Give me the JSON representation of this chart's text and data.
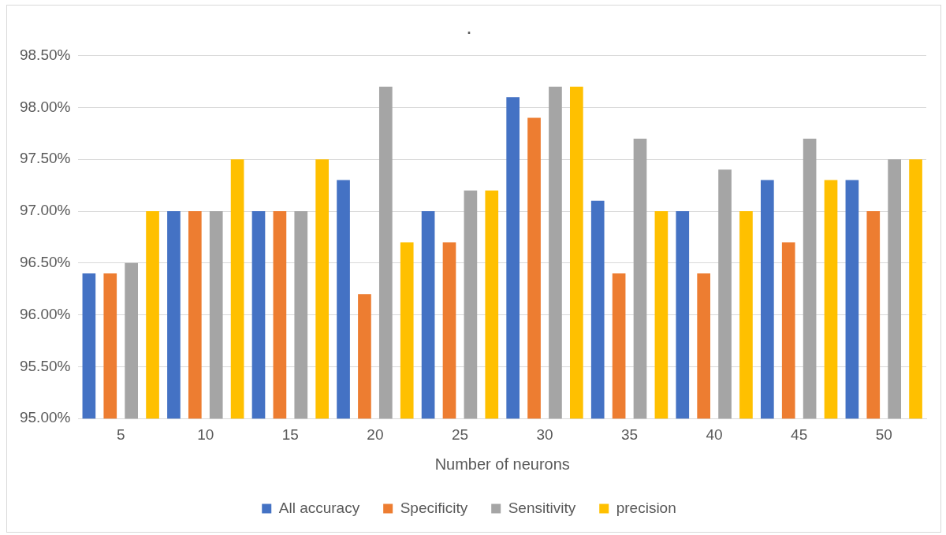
{
  "chart_data": {
    "type": "bar",
    "title": ".",
    "xlabel": "Number of neurons",
    "categories": [
      "5",
      "10",
      "15",
      "20",
      "25",
      "30",
      "35",
      "40",
      "45",
      "50"
    ],
    "series": [
      {
        "name": "All accuracy",
        "color": "#4472c4",
        "values": [
          96.4,
          97.0,
          97.0,
          97.3,
          97.0,
          98.1,
          97.1,
          97.0,
          97.3,
          97.3
        ]
      },
      {
        "name": "Specificity",
        "color": "#ed7d31",
        "values": [
          96.4,
          97.0,
          97.0,
          96.2,
          96.7,
          97.9,
          96.4,
          96.4,
          96.7,
          97.0
        ]
      },
      {
        "name": "Sensitivity",
        "color": "#a5a5a5",
        "values": [
          96.5,
          97.0,
          97.0,
          98.2,
          97.2,
          98.2,
          97.7,
          97.4,
          97.7,
          97.5
        ]
      },
      {
        "name": "precision",
        "color": "#ffc000",
        "values": [
          97.0,
          97.5,
          97.5,
          96.7,
          97.2,
          98.2,
          97.0,
          97.0,
          97.3,
          97.5
        ]
      }
    ],
    "ylim": [
      95,
      98.5
    ],
    "yticks": [
      {
        "value": 95,
        "label": "95.00%"
      },
      {
        "value": 95.5,
        "label": "95.50%"
      },
      {
        "value": 96,
        "label": "96.00%"
      },
      {
        "value": 96.5,
        "label": "96.50%"
      },
      {
        "value": 97,
        "label": "97.00%"
      },
      {
        "value": 97.5,
        "label": "97.50%"
      },
      {
        "value": 98,
        "label": "98.00%"
      },
      {
        "value": 98.5,
        "label": "98.50%"
      }
    ],
    "grid": "y",
    "legend": "bottom"
  }
}
